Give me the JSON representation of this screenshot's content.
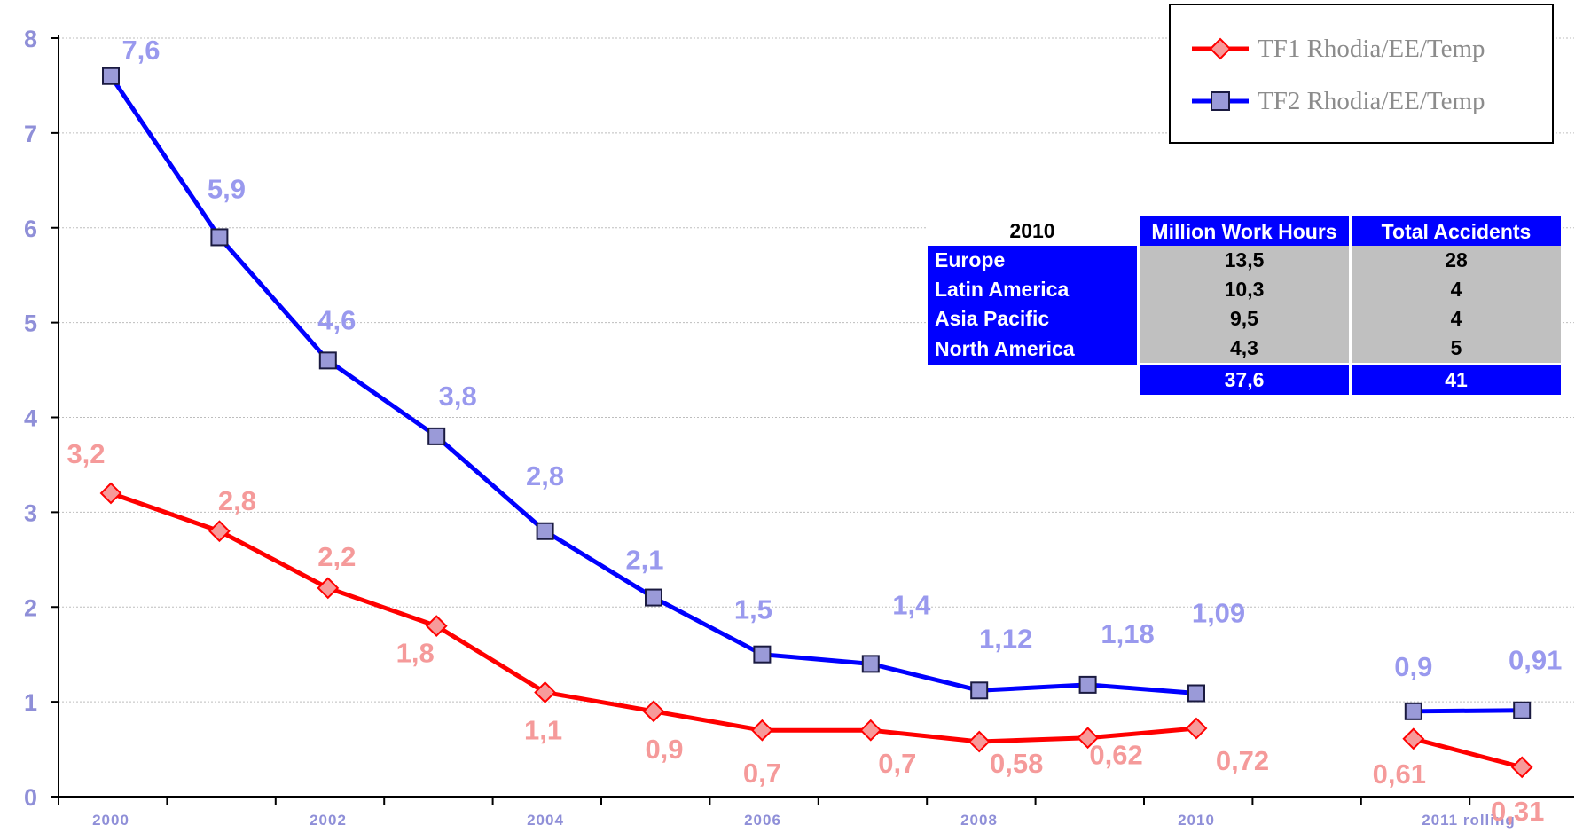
{
  "chart_data": {
    "type": "line",
    "yticks": [
      "0",
      "1",
      "2",
      "3",
      "4",
      "5",
      "6",
      "7",
      "8"
    ],
    "ylim": [
      0,
      8
    ],
    "xtick_labels": [
      "2000",
      "2002",
      "2004",
      "2006",
      "2008",
      "2010",
      "2011 rolling"
    ],
    "grid": true,
    "legend_position": "top-right",
    "series": [
      {
        "name": "TF1 Rhodia/EE/Temp",
        "color": "#ff0000",
        "marker": "diamond",
        "segments": [
          [
            {
              "x": "2000",
              "y": 3.2,
              "label": "3,2"
            },
            {
              "x": "2001",
              "y": 2.8,
              "label": "2,8"
            },
            {
              "x": "2002",
              "y": 2.2,
              "label": "2,2"
            },
            {
              "x": "2003",
              "y": 1.8,
              "label": "1,8"
            },
            {
              "x": "2004",
              "y": 1.1,
              "label": "1,1"
            },
            {
              "x": "2005",
              "y": 0.9,
              "label": "0,9"
            },
            {
              "x": "2006",
              "y": 0.7,
              "label": "0,7"
            },
            {
              "x": "2007",
              "y": 0.7,
              "label": "0,7"
            },
            {
              "x": "2008",
              "y": 0.58,
              "label": "0,58"
            },
            {
              "x": "2009",
              "y": 0.62,
              "label": "0,62"
            },
            {
              "x": "2010",
              "y": 0.72,
              "label": "0,72"
            }
          ],
          [
            {
              "x": "2011 rolling (a)",
              "y": 0.61,
              "label": "0,61"
            },
            {
              "x": "2011 rolling (b)",
              "y": 0.31,
              "label": "0,31"
            }
          ]
        ]
      },
      {
        "name": "TF2 Rhodia/EE/Temp",
        "color": "#0000ff",
        "marker": "square",
        "segments": [
          [
            {
              "x": "2000",
              "y": 7.6,
              "label": "7,6"
            },
            {
              "x": "2001",
              "y": 5.9,
              "label": "5,9"
            },
            {
              "x": "2002",
              "y": 4.6,
              "label": "4,6"
            },
            {
              "x": "2003",
              "y": 3.8,
              "label": "3,8"
            },
            {
              "x": "2004",
              "y": 2.8,
              "label": "2,8"
            },
            {
              "x": "2005",
              "y": 2.1,
              "label": "2,1"
            },
            {
              "x": "2006",
              "y": 1.5,
              "label": "1,5"
            },
            {
              "x": "2007",
              "y": 1.4,
              "label": "1,4"
            },
            {
              "x": "2008",
              "y": 1.12,
              "label": "1,12"
            },
            {
              "x": "2009",
              "y": 1.18,
              "label": "1,18"
            },
            {
              "x": "2010",
              "y": 1.09,
              "label": "1,09"
            }
          ],
          [
            {
              "x": "2011 rolling (a)",
              "y": 0.9,
              "label": "0,9"
            },
            {
              "x": "2011 rolling (b)",
              "y": 0.91,
              "label": "0,91"
            }
          ]
        ]
      }
    ]
  },
  "table": {
    "year": "2010",
    "headers": [
      "Million Work Hours",
      "Total Accidents"
    ],
    "rows": [
      {
        "region": "Europe",
        "hours": "13,5",
        "accidents": "28"
      },
      {
        "region": "Latin America",
        "hours": "10,3",
        "accidents": "4"
      },
      {
        "region": "Asia Pacific",
        "hours": "9,5",
        "accidents": "4"
      },
      {
        "region": "North America",
        "hours": "4,3",
        "accidents": "5"
      }
    ],
    "totals": {
      "hours": "37,6",
      "accidents": "41"
    }
  },
  "colors": {
    "tf1": "#ff0000",
    "tf2": "#0000ff",
    "tf1_marker": "#f79a9a",
    "tf2_marker": "#9a9ad8",
    "table_header": "#0000ff",
    "table_cell": "#c0c0c0"
  }
}
